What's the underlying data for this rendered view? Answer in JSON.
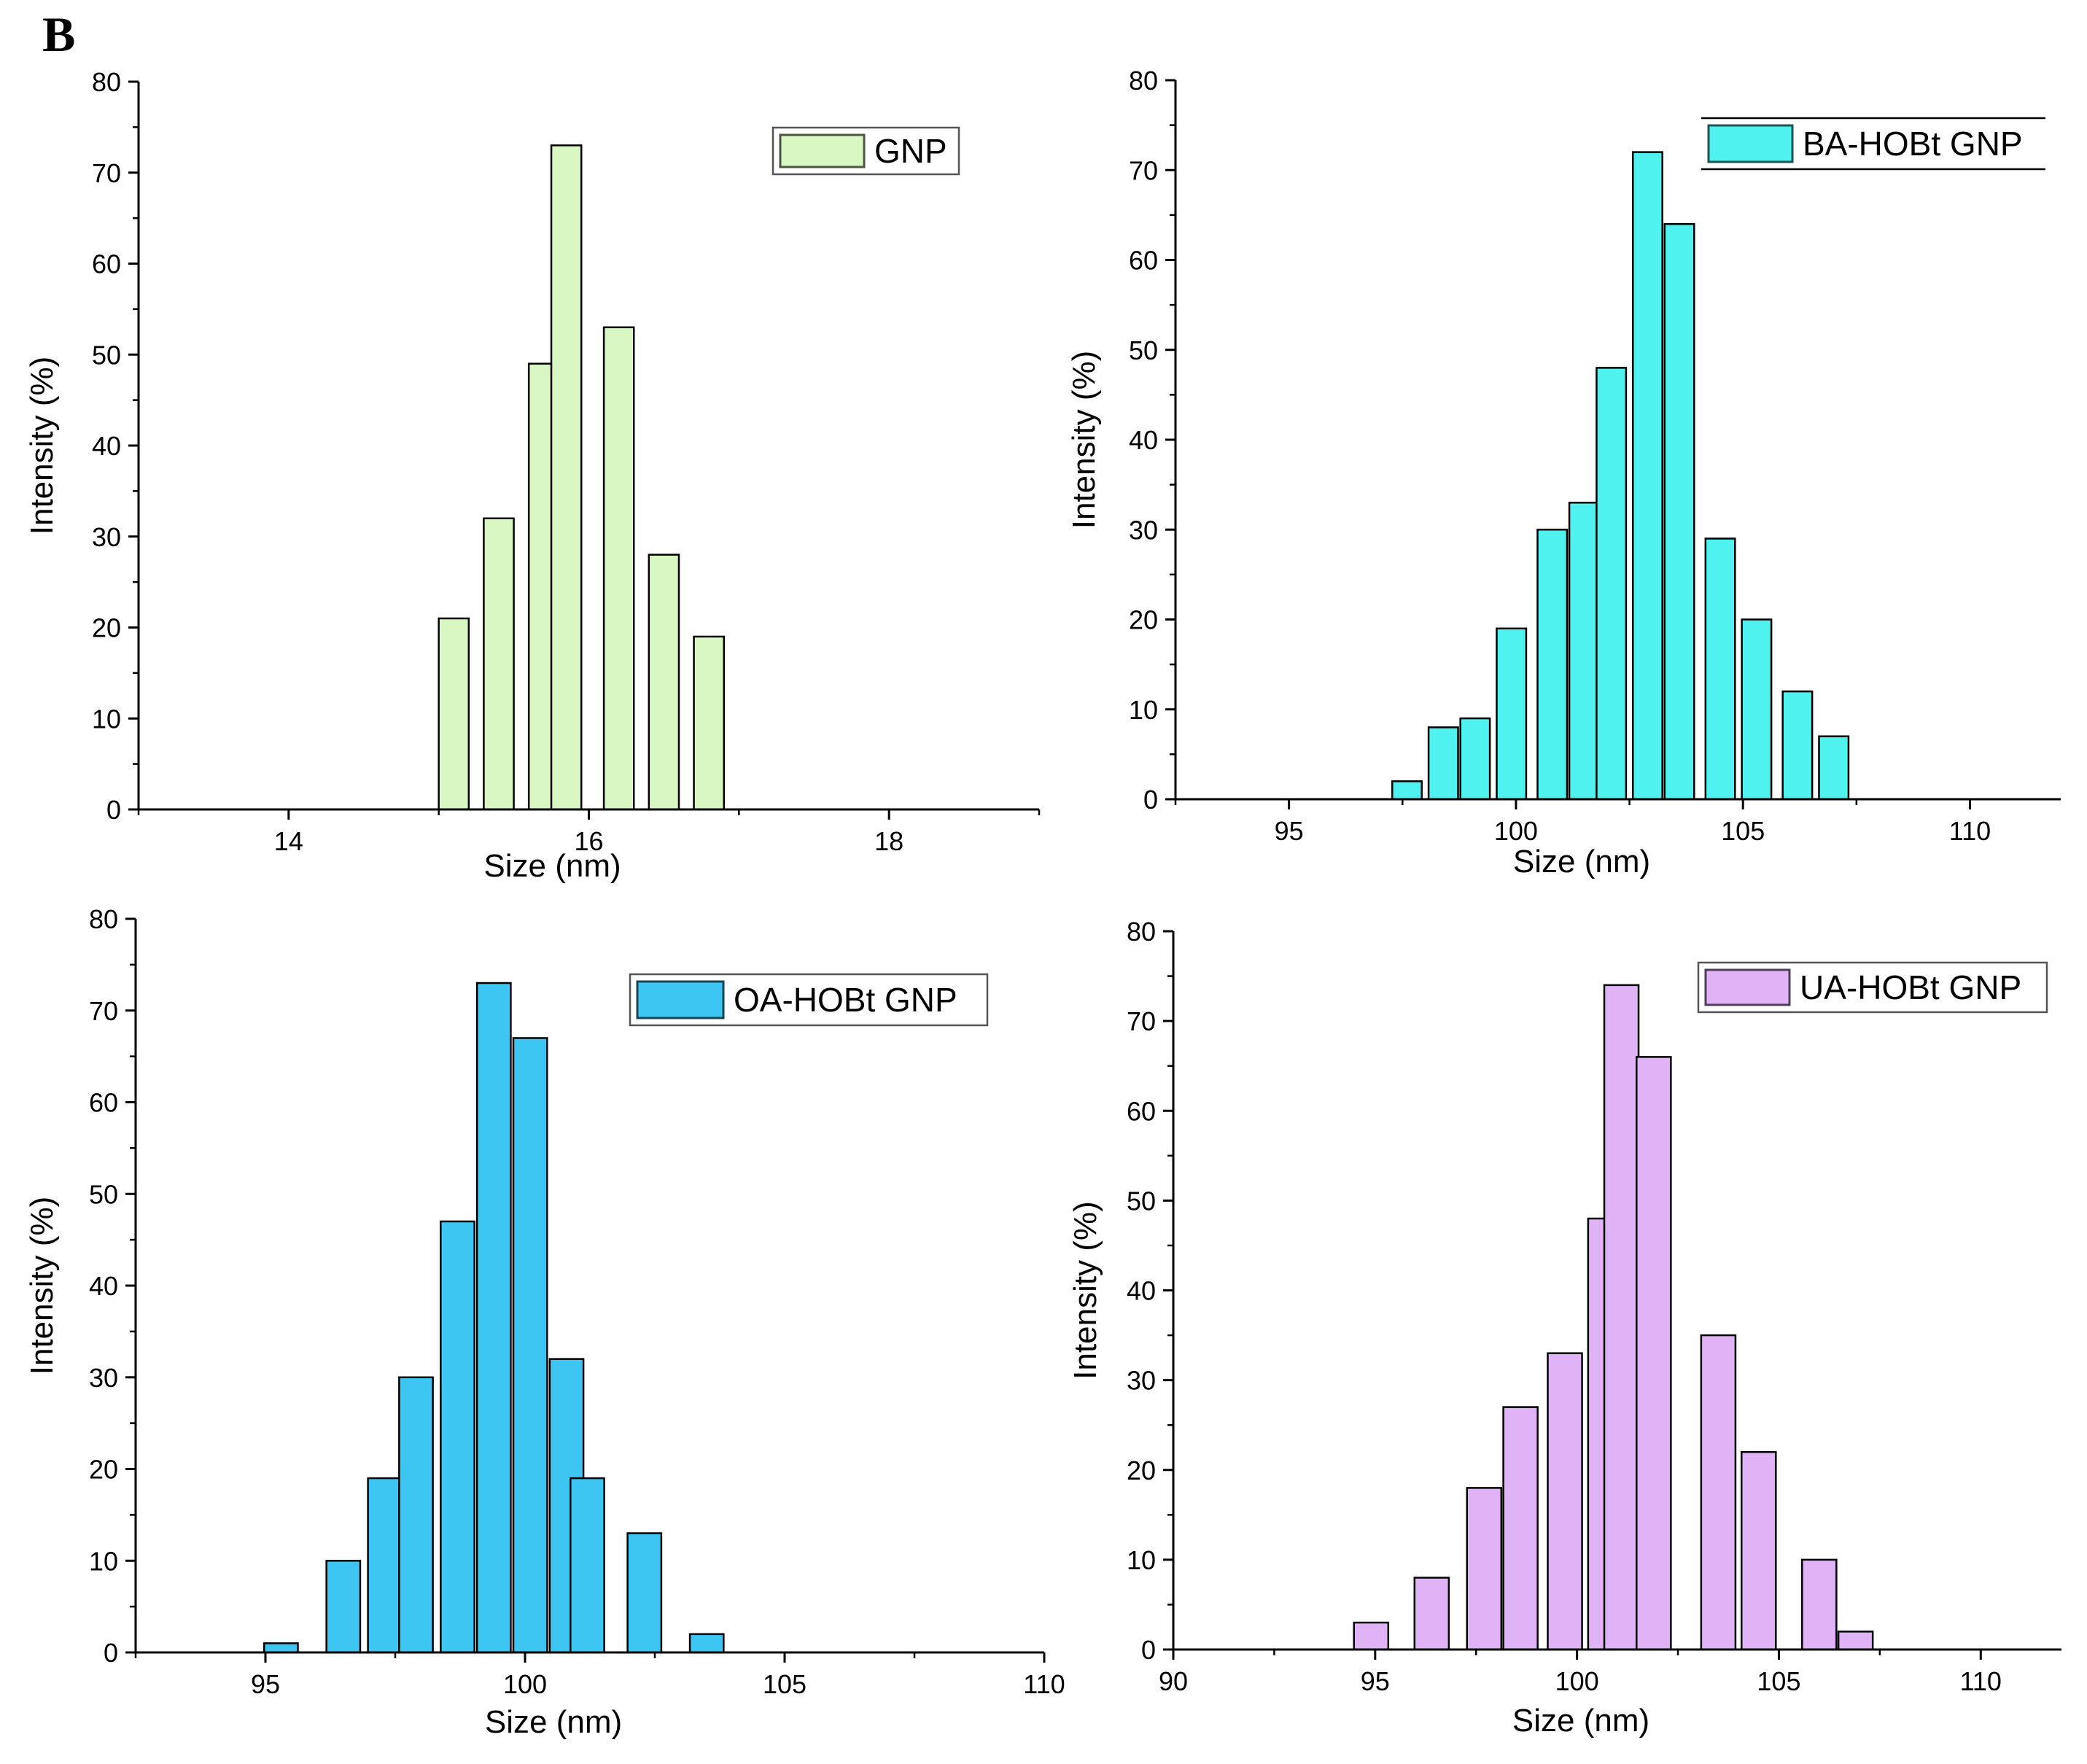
{
  "figure": {
    "panel_label": "B"
  },
  "chart_data": [
    {
      "type": "bar",
      "title": "",
      "xlabel": "Size (nm)",
      "ylabel": "Intensity (%)",
      "xlim": [
        13,
        19
      ],
      "ylim": [
        0,
        80
      ],
      "xticks": [
        14,
        16,
        18
      ],
      "yticks": [
        0,
        10,
        20,
        30,
        40,
        50,
        60,
        70,
        80
      ],
      "grid": false,
      "legend": {
        "label": "GNP",
        "position": "top-right",
        "framed": true
      },
      "bar_width": 0.2,
      "color": "#d9f7c3",
      "x": [
        15.1,
        15.4,
        15.7,
        15.85,
        16.2,
        16.5,
        16.8
      ],
      "values": [
        21,
        32,
        49,
        73,
        53,
        28,
        19
      ]
    },
    {
      "type": "bar",
      "title": "",
      "xlabel": "Size (nm)",
      "ylabel": "Intensity (%)",
      "xlim": [
        92.5,
        112
      ],
      "ylim": [
        0,
        80
      ],
      "xticks": [
        95,
        100,
        105,
        110
      ],
      "yticks": [
        0,
        10,
        20,
        30,
        40,
        50,
        60,
        70,
        80
      ],
      "grid": false,
      "legend": {
        "label": "BA-HOBt GNP",
        "position": "top-right",
        "framed": false
      },
      "bar_width": 0.65,
      "color": "#4ff2ee",
      "x": [
        97.6,
        98.4,
        99.1,
        99.9,
        100.8,
        101.5,
        102.1,
        102.9,
        103.6,
        104.5,
        105.3,
        106.2,
        107.0
      ],
      "values": [
        2,
        8,
        9,
        19,
        30,
        33,
        48,
        72,
        64,
        29,
        20,
        12,
        7
      ]
    },
    {
      "type": "bar",
      "title": "",
      "xlabel": "Size (nm)",
      "ylabel": "Intensity (%)",
      "xlim": [
        92.5,
        110
      ],
      "ylim": [
        0,
        80
      ],
      "xticks": [
        95,
        100,
        105,
        110
      ],
      "yticks": [
        0,
        10,
        20,
        30,
        40,
        50,
        60,
        70,
        80
      ],
      "grid": false,
      "legend": {
        "label": "OA-HOBt GNP",
        "position": "top-right",
        "framed": true
      },
      "bar_width": 0.65,
      "color": "#3ec6f2",
      "x": [
        95.3,
        96.5,
        97.3,
        97.9,
        98.7,
        99.4,
        100.1,
        100.8,
        101.2,
        102.3,
        103.5
      ],
      "values": [
        1,
        10,
        19,
        30,
        47,
        73,
        67,
        32,
        19,
        13,
        2
      ]
    },
    {
      "type": "bar",
      "title": "",
      "xlabel": "Size (nm)",
      "ylabel": "Intensity (%)",
      "xlim": [
        90,
        112
      ],
      "ylim": [
        0,
        80
      ],
      "xticks": [
        90,
        95,
        100,
        105,
        110
      ],
      "yticks": [
        0,
        10,
        20,
        30,
        40,
        50,
        60,
        70,
        80
      ],
      "grid": false,
      "legend": {
        "label": "UA-HOBt GNP",
        "position": "top-right",
        "framed": true
      },
      "bar_width": 0.85,
      "color": "#e0b2f6",
      "x": [
        94.9,
        96.4,
        97.7,
        98.6,
        99.7,
        100.7,
        101.1,
        101.9,
        103.5,
        104.5,
        106.0,
        106.9
      ],
      "values": [
        3,
        8,
        18,
        27,
        33,
        48,
        74,
        66,
        35,
        22,
        10,
        2
      ]
    }
  ]
}
